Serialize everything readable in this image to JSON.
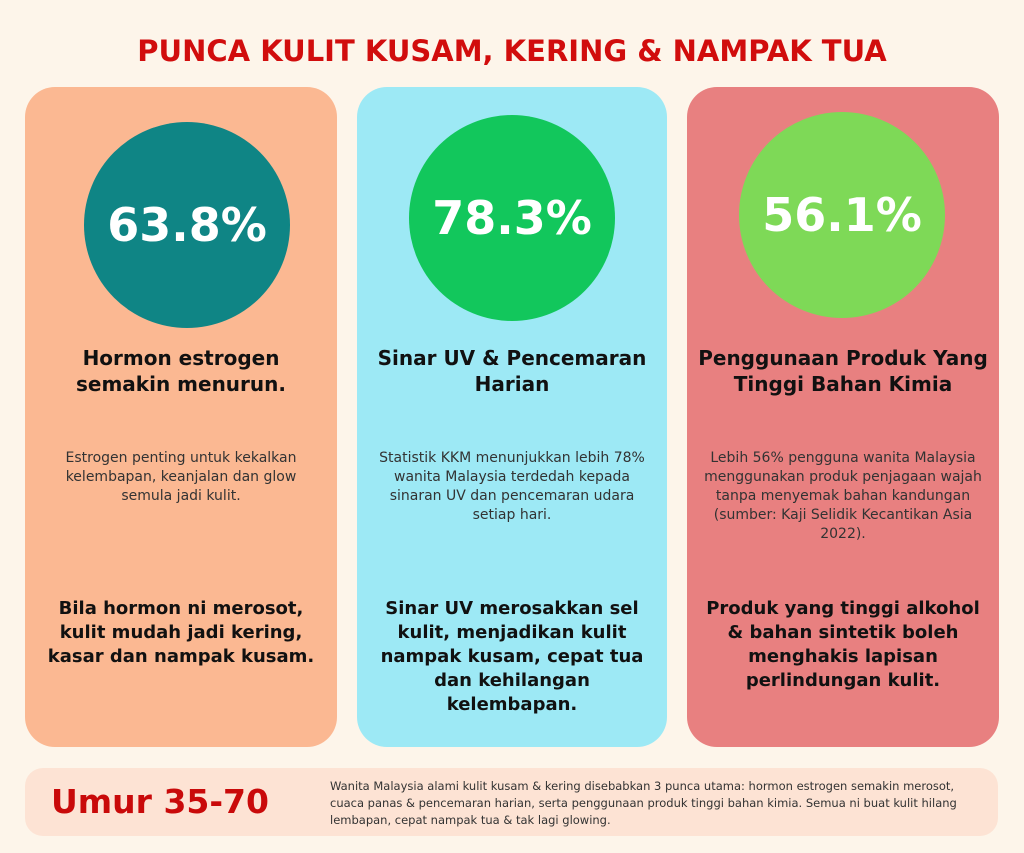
{
  "title": "PUNCA KULIT KUSAM, KERING & NAMPAK TUA",
  "colors": {
    "title": "#d10d0d",
    "background": "#fdf5ea"
  },
  "cards": [
    {
      "percent": "63.8%",
      "heading": "Hormon estrogen semakin menurun.",
      "description": "Estrogen penting untuk kekalkan kelembapan, keanjalan dan glow semula jadi kulit.",
      "bottom": "Bila hormon ni merosot, kulit mudah jadi kering, kasar dan nampak kusam.",
      "card_color": "#fbb892",
      "circle_color": "#0f8585"
    },
    {
      "percent": "78.3%",
      "heading": "Sinar UV & Pencemaran Harian",
      "description": "Statistik KKM menunjukkan lebih 78% wanita Malaysia terdedah kepada sinaran UV dan pencemaran udara setiap hari.",
      "bottom": "Sinar UV merosakkan sel kulit, menjadikan kulit nampak kusam, cepat tua dan kehilangan kelembapan.",
      "card_color": "#9de9f5",
      "circle_color": "#12c75c"
    },
    {
      "percent": "56.1%",
      "heading": "Penggunaan Produk Yang Tinggi Bahan Kimia",
      "description": "Lebih 56% pengguna wanita Malaysia menggunakan produk penjagaan wajah tanpa menyemak bahan kandungan (sumber: Kaji Selidik Kecantikan Asia 2022).",
      "bottom": "Produk yang tinggi alkohol & bahan sintetik boleh menghakis lapisan perlindungan kulit.",
      "card_color": "#e88080",
      "circle_color": "#7ed957"
    }
  ],
  "footer": {
    "age": "Umur 35-70",
    "note": "Wanita Malaysia alami kulit kusam & kering disebabkan 3 punca utama: hormon estrogen semakin merosot, cuaca panas & pencemaran harian, serta penggunaan produk tinggi bahan kimia. Semua ni buat kulit hilang lembapan, cepat nampak tua & tak lagi glowing."
  }
}
